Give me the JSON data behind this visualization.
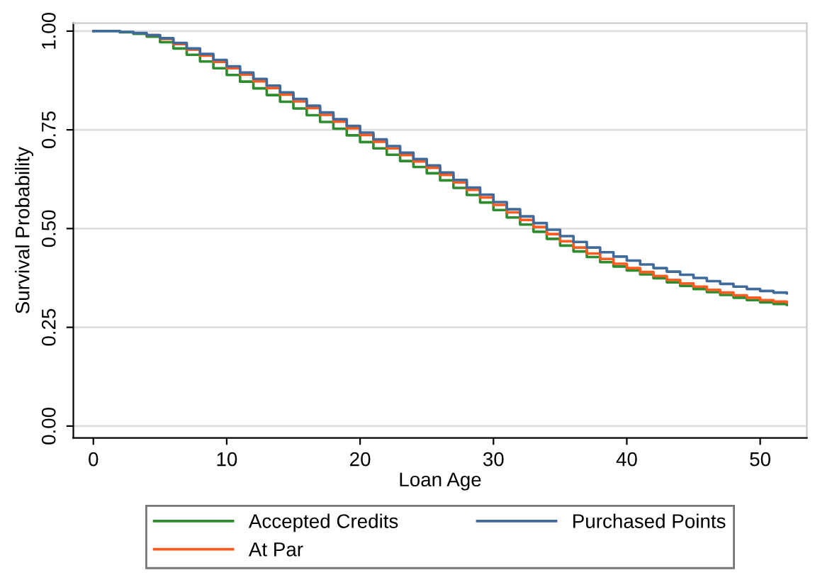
{
  "chart_data": {
    "type": "step",
    "xlabel": "Loan Age",
    "ylabel": "Survival Probability",
    "x": [
      0,
      1,
      2,
      3,
      4,
      5,
      6,
      7,
      8,
      9,
      10,
      11,
      12,
      13,
      14,
      15,
      16,
      17,
      18,
      19,
      20,
      21,
      22,
      23,
      24,
      25,
      26,
      27,
      28,
      29,
      30,
      31,
      32,
      33,
      34,
      35,
      36,
      37,
      38,
      39,
      40,
      41,
      42,
      43,
      44,
      45,
      46,
      47,
      48,
      49,
      50,
      51,
      52
    ],
    "series": [
      {
        "name": "Accepted Credits",
        "color": "#2e8b2e",
        "values": [
          null,
          null,
          0.997,
          0.993,
          0.986,
          0.972,
          0.956,
          0.94,
          0.923,
          0.906,
          0.889,
          0.872,
          0.855,
          0.838,
          0.821,
          0.804,
          0.787,
          0.77,
          0.753,
          0.736,
          0.719,
          0.703,
          0.687,
          0.671,
          0.656,
          0.64,
          0.622,
          0.603,
          0.585,
          0.566,
          0.547,
          0.528,
          0.51,
          0.492,
          0.474,
          0.457,
          0.442,
          0.428,
          0.415,
          0.404,
          0.394,
          0.384,
          0.374,
          0.364,
          0.355,
          0.347,
          0.339,
          0.332,
          0.325,
          0.319,
          0.313,
          0.309,
          0.307
        ]
      },
      {
        "name": "At Par",
        "color": "#ff5a1f",
        "values": [
          null,
          null,
          null,
          null,
          0.99,
          0.98,
          0.967,
          0.953,
          0.938,
          0.922,
          0.906,
          0.89,
          0.873,
          0.856,
          0.839,
          0.822,
          0.805,
          0.788,
          0.771,
          0.754,
          0.737,
          0.72,
          0.703,
          0.686,
          0.67,
          0.654,
          0.636,
          0.617,
          0.598,
          0.579,
          0.56,
          0.541,
          0.522,
          0.504,
          0.486,
          0.468,
          0.452,
          0.437,
          0.423,
          0.411,
          0.4,
          0.39,
          0.38,
          0.37,
          0.361,
          0.353,
          0.345,
          0.338,
          0.331,
          0.325,
          0.319,
          0.315,
          0.313
        ]
      },
      {
        "name": "Purchased Points",
        "color": "#3f6a9a",
        "values": [
          1,
          1,
          0.998,
          0.995,
          0.99,
          0.982,
          0.97,
          0.956,
          0.942,
          0.927,
          0.911,
          0.895,
          0.879,
          0.862,
          0.845,
          0.828,
          0.811,
          0.794,
          0.777,
          0.76,
          0.743,
          0.726,
          0.709,
          0.692,
          0.676,
          0.66,
          0.642,
          0.623,
          0.604,
          0.586,
          0.567,
          0.549,
          0.531,
          0.514,
          0.497,
          0.481,
          0.466,
          0.452,
          0.44,
          0.429,
          0.419,
          0.409,
          0.4,
          0.391,
          0.383,
          0.375,
          0.367,
          0.36,
          0.353,
          0.347,
          0.342,
          0.338,
          0.336
        ]
      }
    ],
    "xlim": [
      -1.5,
      53.5
    ],
    "xticks": [
      0,
      10,
      20,
      30,
      40,
      50
    ],
    "ylim": [
      -0.03,
      1.02
    ],
    "yticks": [
      {
        "value": 0,
        "label": "0.00"
      },
      {
        "value": 0.25,
        "label": "0.25"
      },
      {
        "value": 0.5,
        "label": "0.50"
      },
      {
        "value": 0.75,
        "label": "0.75"
      },
      {
        "value": 1,
        "label": "1.00"
      }
    ],
    "grid": "y",
    "legend": "bottom",
    "line_style": "solid"
  }
}
